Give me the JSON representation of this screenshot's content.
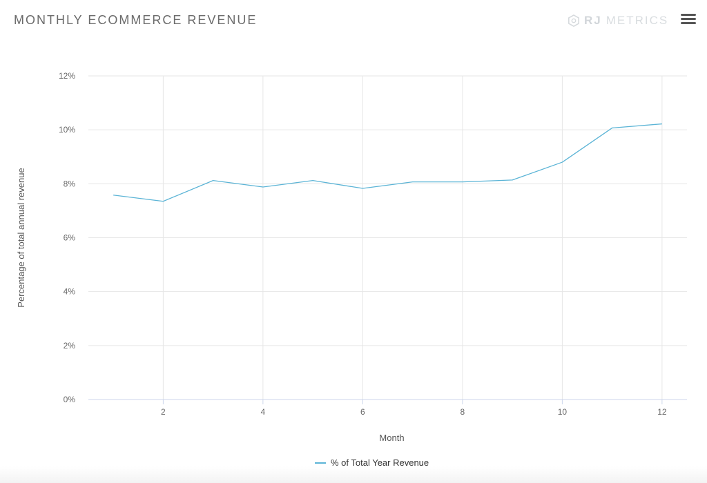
{
  "header": {
    "title": "MONTHLY ECOMMERCE REVENUE",
    "brand_rj": "RJ",
    "brand_metrics": "METRICS"
  },
  "icons": {
    "logo": "rjmetrics-logo-icon",
    "menu": "hamburger-menu-icon"
  },
  "colors": {
    "series": "#5bb4d6",
    "grid": "#e6e6e6",
    "axis": "#ccd6eb",
    "text": "#666666"
  },
  "chart_data": {
    "type": "line",
    "title": "MONTHLY ECOMMERCE REVENUE",
    "xlabel": "Month",
    "ylabel": "Percentage of total annual revenue",
    "xlim": [
      0.5,
      12.5
    ],
    "ylim": [
      0,
      12
    ],
    "x_ticks": [
      2,
      4,
      6,
      8,
      10,
      12
    ],
    "y_ticks": [
      0,
      2,
      4,
      6,
      8,
      10,
      12
    ],
    "y_tick_suffix": "%",
    "grid": true,
    "legend_position": "bottom-center",
    "series": [
      {
        "name": "% of Total Year Revenue",
        "x": [
          1,
          2,
          3,
          4,
          5,
          6,
          7,
          8,
          9,
          10,
          11,
          12
        ],
        "values": [
          7.58,
          7.35,
          8.12,
          7.88,
          8.12,
          7.83,
          8.07,
          8.07,
          8.14,
          8.8,
          10.07,
          10.22
        ]
      }
    ]
  }
}
